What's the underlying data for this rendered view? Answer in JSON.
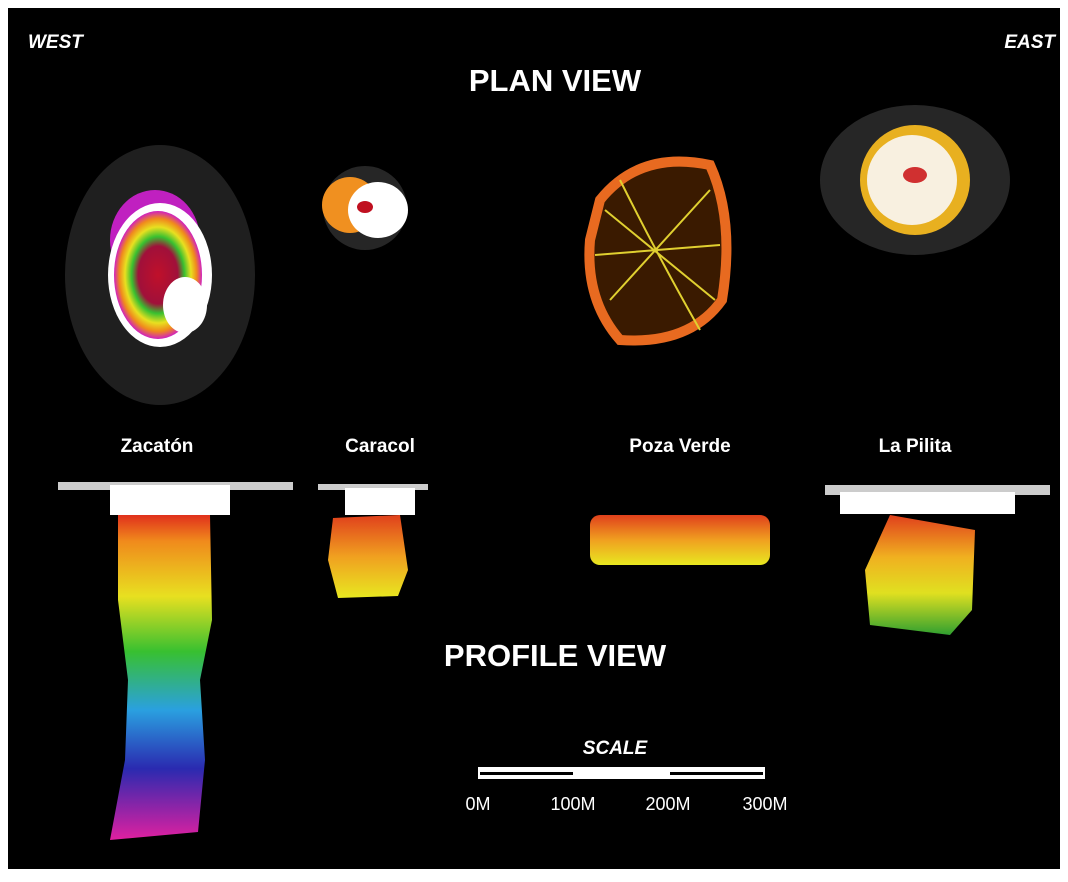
{
  "labels": {
    "west": "WEST",
    "east": "EAST"
  },
  "plan_view": {
    "title": "PLAN VIEW"
  },
  "profile_view": {
    "title": "PROFILE VIEW"
  },
  "cenotes": [
    "Zacatón",
    "Caracol",
    "Poza Verde",
    "La Pilita"
  ],
  "scale": {
    "title": "SCALE",
    "labels": [
      "0M",
      "100M",
      "200M",
      "300M"
    ]
  }
}
